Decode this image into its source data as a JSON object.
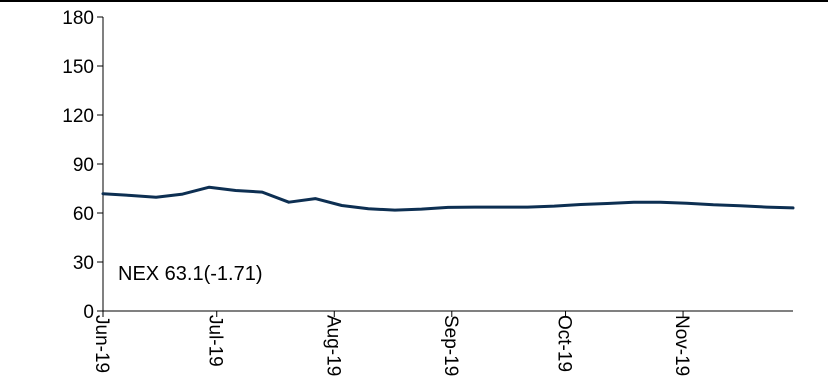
{
  "chart_data": {
    "type": "line",
    "title": "",
    "xlabel": "",
    "ylabel": "",
    "ylim": [
      0,
      180
    ],
    "yticks": [
      0,
      30,
      60,
      90,
      120,
      150,
      180
    ],
    "xlim": [
      "2019-06-01",
      "2019-11-30"
    ],
    "xtick_labels": [
      "Jun-19",
      "Jul-19",
      "Aug-19",
      "Sep-19",
      "Oct-19",
      "Nov-19"
    ],
    "xtick_dates": [
      "2019-06-01",
      "2019-07-01",
      "2019-08-01",
      "2019-09-01",
      "2019-10-01",
      "2019-11-01"
    ],
    "grid": false,
    "legend": "none",
    "annotation": "NEX 63.1(-1.71)",
    "series": [
      {
        "color": "#0d2f52",
        "x": [
          "2019-06-01",
          "2019-06-08",
          "2019-06-15",
          "2019-06-22",
          "2019-06-29",
          "2019-07-06",
          "2019-07-13",
          "2019-07-20",
          "2019-07-27",
          "2019-08-03",
          "2019-08-10",
          "2019-08-17",
          "2019-08-24",
          "2019-08-31",
          "2019-09-07",
          "2019-09-14",
          "2019-09-21",
          "2019-09-28",
          "2019-10-05",
          "2019-10-12",
          "2019-10-19",
          "2019-10-26",
          "2019-11-02",
          "2019-11-09",
          "2019-11-16",
          "2019-11-23",
          "2019-11-30"
        ],
        "y": [
          71.8,
          70.8,
          69.6,
          71.6,
          75.8,
          73.8,
          72.8,
          66.6,
          68.8,
          64.6,
          62.6,
          61.8,
          62.4,
          63.4,
          63.6,
          63.6,
          63.6,
          64.2,
          65.2,
          65.8,
          66.6,
          66.6,
          66.0,
          65.0,
          64.4,
          63.6,
          63.1
        ]
      }
    ]
  }
}
